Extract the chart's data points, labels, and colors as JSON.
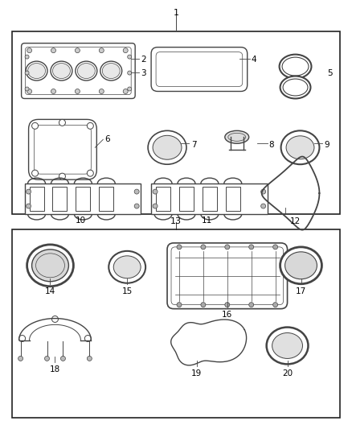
{
  "background": "#ffffff",
  "border_color": "#222222",
  "line_color": "#444444",
  "text_color": "#000000",
  "figsize": [
    4.38,
    5.33
  ],
  "dpi": 100
}
